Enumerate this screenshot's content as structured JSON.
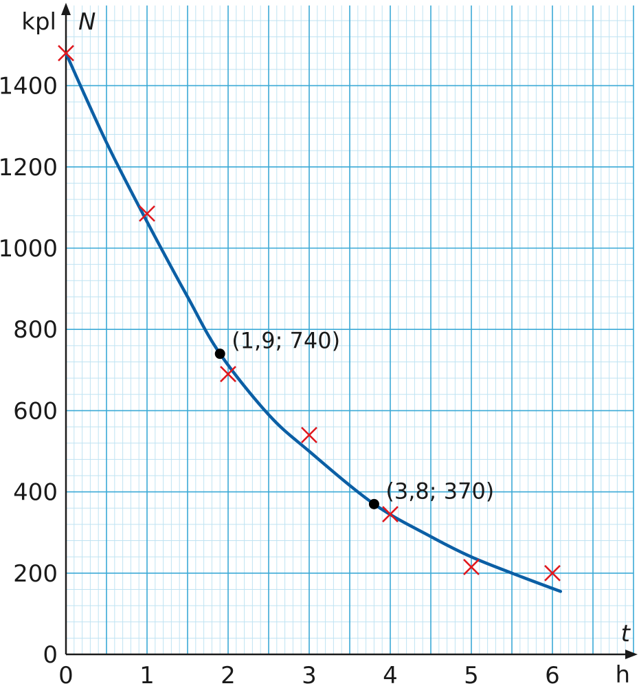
{
  "chart_data": {
    "type": "scatter",
    "title": "",
    "xlabel": "t",
    "xunit": "h",
    "ylabel": "N",
    "yunit": "kpl",
    "xlim": [
      0,
      7
    ],
    "ylim": [
      0,
      1600
    ],
    "xticks": [
      0,
      1,
      2,
      3,
      4,
      5,
      6
    ],
    "yticks": [
      0,
      200,
      400,
      600,
      800,
      1000,
      1200,
      1400
    ],
    "grid": true,
    "grid_minor_step_x": 0.1,
    "grid_minor_step_y": 40,
    "measurements": {
      "marker": "cross",
      "color": "#e0181e",
      "points": [
        {
          "x": 0,
          "y": 1480
        },
        {
          "x": 1,
          "y": 1085
        },
        {
          "x": 2,
          "y": 690
        },
        {
          "x": 3,
          "y": 540
        },
        {
          "x": 4,
          "y": 345
        },
        {
          "x": 5,
          "y": 215
        },
        {
          "x": 6,
          "y": 200
        }
      ]
    },
    "fit_curve": {
      "type": "line",
      "color": "#0b5fa5",
      "x_range": [
        0,
        6.1
      ],
      "points": [
        {
          "x": 0,
          "y": 1480
        },
        {
          "x": 0.5,
          "y": 1260
        },
        {
          "x": 1,
          "y": 1065
        },
        {
          "x": 1.5,
          "y": 880
        },
        {
          "x": 1.9,
          "y": 740
        },
        {
          "x": 2.5,
          "y": 590
        },
        {
          "x": 3,
          "y": 500
        },
        {
          "x": 3.8,
          "y": 370
        },
        {
          "x": 4.5,
          "y": 290
        },
        {
          "x": 5,
          "y": 240
        },
        {
          "x": 5.5,
          "y": 200
        },
        {
          "x": 6.1,
          "y": 155
        }
      ]
    },
    "highlighted_points": [
      {
        "x": 1.9,
        "y": 740,
        "label": "(1,9; 740)"
      },
      {
        "x": 3.8,
        "y": 370,
        "label": "(3,8; 370)"
      }
    ],
    "colors": {
      "grid_minor": "#bfe3f2",
      "grid_major": "#3aa9d6",
      "axis": "#1a1a1a"
    }
  }
}
